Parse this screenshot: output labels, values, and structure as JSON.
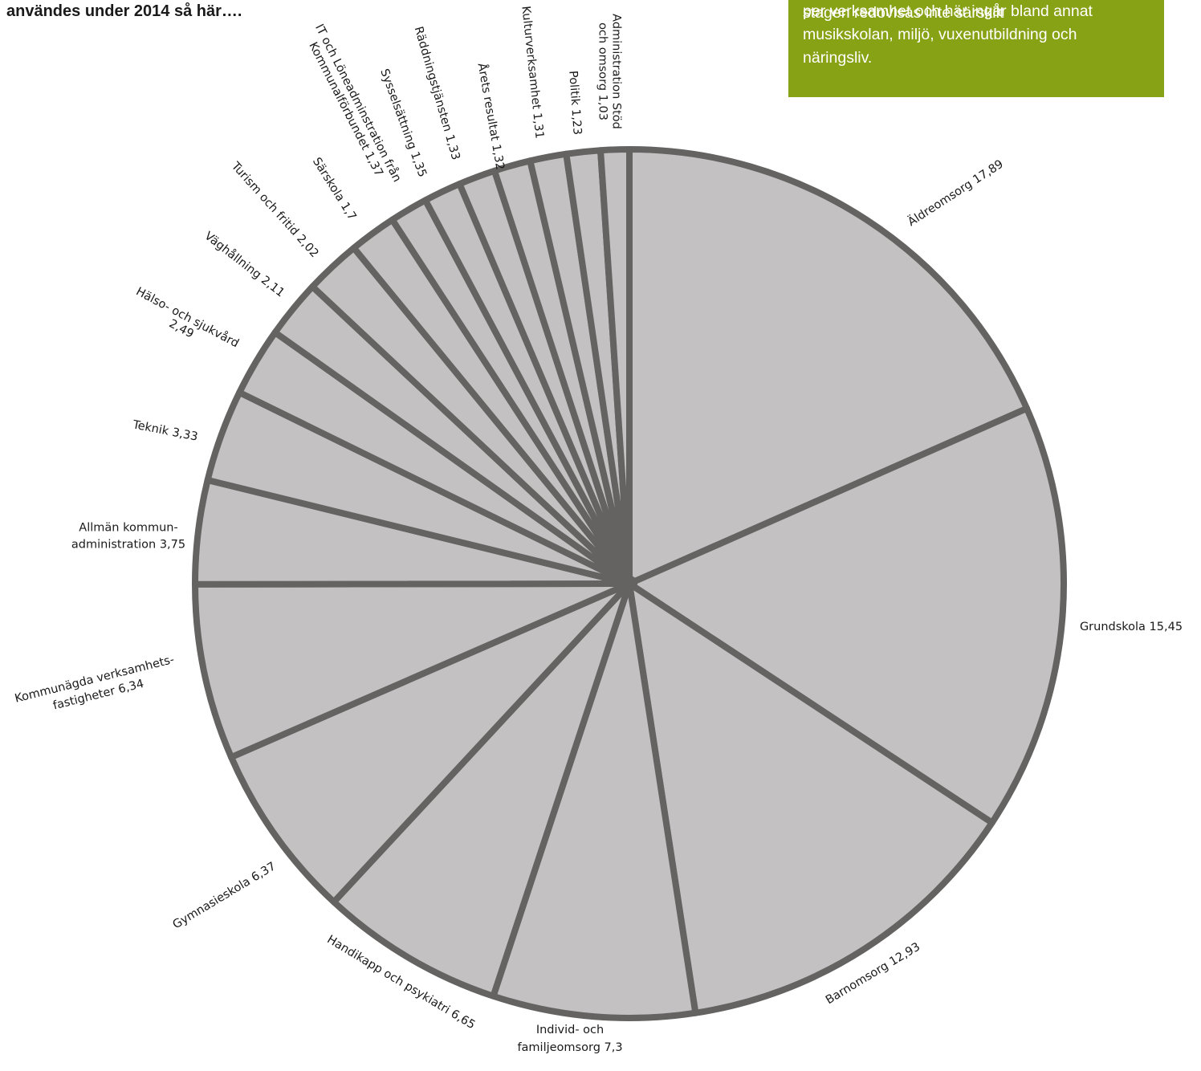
{
  "page": {
    "title": "användes under 2014 så här….",
    "note_lines": [
      "stagen redovisas inte särskilt",
      "per verksamhet och här ingår bland annat",
      "musikskolan, miljö, vuxenutbildning och",
      "näringsliv."
    ]
  },
  "colors": {
    "slice_fill": "#c3c1c2",
    "slice_stroke": "#646362",
    "note_background": "#88a216",
    "note_text": "#ffffff",
    "label_text": "#1a1a1a"
  },
  "chart_data": {
    "type": "pie",
    "start": "12 o'clock, clockwise",
    "slices": [
      {
        "name": "Äldreomsorg",
        "value": 17.89,
        "label_lines": [
          "Äldreomsorg 17,89"
        ]
      },
      {
        "name": "Grundskola",
        "value": 15.45,
        "label_lines": [
          "Grundskola 15,45"
        ]
      },
      {
        "name": "Barnomsorg",
        "value": 12.93,
        "label_lines": [
          "Barnomsorg 12,93"
        ]
      },
      {
        "name": "Individ- och familjeomsorg",
        "value": 7.3,
        "label_lines": [
          "Individ- och",
          "familjeomsorg 7,3"
        ]
      },
      {
        "name": "Handikapp och psykiatri",
        "value": 6.65,
        "label_lines": [
          "Handikapp och psykiatri 6,65"
        ]
      },
      {
        "name": "Gymnasieskola",
        "value": 6.37,
        "label_lines": [
          "Gymnasieskola 6,37"
        ]
      },
      {
        "name": "Kommunägda verksamhetsfastigheter",
        "value": 6.34,
        "label_lines": [
          "Kommunägda verksamhets-",
          "fastigheter 6,34"
        ]
      },
      {
        "name": "Allmän kommunadministration",
        "value": 3.75,
        "label_lines": [
          "Allmän kommun-",
          "administration 3,75"
        ]
      },
      {
        "name": "Teknik",
        "value": 3.33,
        "label_lines": [
          "Teknik 3,33"
        ]
      },
      {
        "name": "Hälso- och sjukvård",
        "value": 2.49,
        "label_lines": [
          "Hälso- och sjukvård",
          "2,49"
        ]
      },
      {
        "name": "Väghållning",
        "value": 2.11,
        "label_lines": [
          "Väghållning 2,11"
        ]
      },
      {
        "name": "Turism och fritid",
        "value": 2.02,
        "label_lines": [
          "Turism och fritid 2,02"
        ]
      },
      {
        "name": "Särskola",
        "value": 1.7,
        "label_lines": [
          "Särskola 1,7"
        ]
      },
      {
        "name": "IT och Löneadminstration från Kommunalförbundet",
        "value": 1.37,
        "label_lines": [
          "IT och Löneadminstration från",
          "Kommunalförbundet 1,37"
        ]
      },
      {
        "name": "Sysselsättning",
        "value": 1.35,
        "label_lines": [
          "Sysselsättning 1,35"
        ]
      },
      {
        "name": "Räddningstjänsten",
        "value": 1.33,
        "label_lines": [
          "Räddningstjänsten 1,33"
        ]
      },
      {
        "name": "Årets resultat",
        "value": 1.32,
        "label_lines": [
          "Årets resultat 1,32"
        ]
      },
      {
        "name": "Kulturverksamhet",
        "value": 1.31,
        "label_lines": [
          "Kulturverksamhet 1,31"
        ]
      },
      {
        "name": "Politik",
        "value": 1.23,
        "label_lines": [
          "Politik 1,23"
        ]
      },
      {
        "name": "Administration Stöd och omsorg",
        "value": 1.03,
        "label_lines": [
          "Administration Stöd",
          "och omsorg 1,03"
        ]
      }
    ]
  }
}
